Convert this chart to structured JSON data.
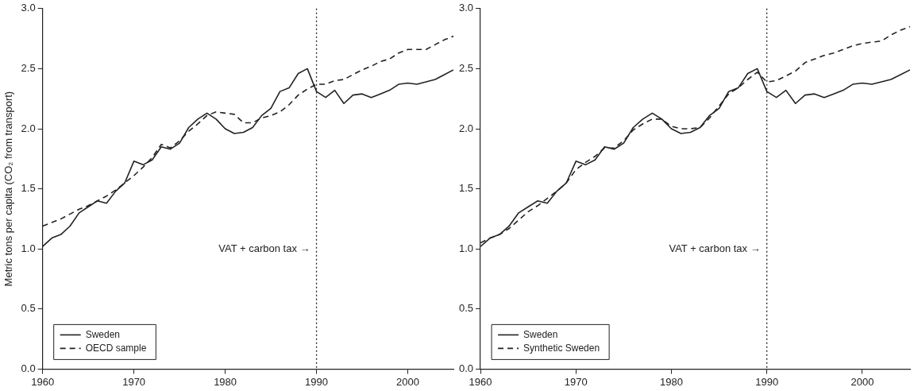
{
  "chart_data": [
    {
      "type": "line",
      "ylabel": "Metric tons per capita (CO₂ from transport)",
      "x": [
        1960,
        1961,
        1962,
        1963,
        1964,
        1965,
        1966,
        1967,
        1968,
        1969,
        1970,
        1971,
        1972,
        1973,
        1974,
        1975,
        1976,
        1977,
        1978,
        1979,
        1980,
        1981,
        1982,
        1983,
        1984,
        1985,
        1986,
        1987,
        1988,
        1989,
        1990,
        1991,
        1992,
        1993,
        1994,
        1995,
        1996,
        1997,
        1998,
        1999,
        2000,
        2001,
        2002,
        2003,
        2004,
        2005
      ],
      "series": [
        {
          "name": "Sweden",
          "color": "#222222",
          "line_style": "solid",
          "values": [
            1.02,
            1.09,
            1.12,
            1.19,
            1.3,
            1.35,
            1.4,
            1.38,
            1.48,
            1.55,
            1.73,
            1.7,
            1.74,
            1.85,
            1.83,
            1.88,
            2.01,
            2.08,
            2.13,
            2.08,
            2.0,
            1.96,
            1.97,
            2.01,
            2.11,
            2.17,
            2.31,
            2.34,
            2.46,
            2.5,
            2.31,
            2.26,
            2.32,
            2.21,
            2.28,
            2.29,
            2.26,
            2.29,
            2.32,
            2.37,
            2.38,
            2.37,
            2.39,
            2.41,
            2.45,
            2.49
          ]
        },
        {
          "name": "OECD sample",
          "color": "#222222",
          "line_style": "dashed",
          "values": [
            1.19,
            1.22,
            1.25,
            1.29,
            1.33,
            1.36,
            1.4,
            1.44,
            1.49,
            1.55,
            1.61,
            1.68,
            1.76,
            1.87,
            1.84,
            1.9,
            1.98,
            2.04,
            2.11,
            2.14,
            2.13,
            2.12,
            2.05,
            2.05,
            2.09,
            2.11,
            2.14,
            2.2,
            2.28,
            2.33,
            2.37,
            2.37,
            2.4,
            2.41,
            2.45,
            2.49,
            2.52,
            2.56,
            2.58,
            2.63,
            2.66,
            2.66,
            2.66,
            2.7,
            2.74,
            2.77
          ]
        }
      ],
      "xlim": [
        1960,
        2005
      ],
      "xticks": [
        1960,
        1970,
        1980,
        1990,
        2000
      ],
      "ylim": [
        0,
        3
      ],
      "yticks": [
        {
          "value": 0,
          "label": "0.0"
        },
        {
          "value": 0.5,
          "label": "0.5"
        },
        {
          "value": 1,
          "label": "1.0"
        },
        {
          "value": 1.5,
          "label": "1.5"
        },
        {
          "value": 2,
          "label": "2.0"
        },
        {
          "value": 2.5,
          "label": "2.5"
        },
        {
          "value": 3,
          "label": "3.0"
        }
      ],
      "ref_lines": [
        {
          "axis": "x",
          "value": 1990,
          "line_style": "dotted",
          "color": "#222222"
        }
      ],
      "annotations": [
        {
          "text": "VAT + carbon tax →",
          "x": 1990,
          "y": 1.0
        }
      ],
      "legend": "bottom left",
      "grid": false,
      "marker": "none"
    },
    {
      "type": "line",
      "x": [
        1960,
        1961,
        1962,
        1963,
        1964,
        1965,
        1966,
        1967,
        1968,
        1969,
        1970,
        1971,
        1972,
        1973,
        1974,
        1975,
        1976,
        1977,
        1978,
        1979,
        1980,
        1981,
        1982,
        1983,
        1984,
        1985,
        1986,
        1987,
        1988,
        1989,
        1990,
        1991,
        1992,
        1993,
        1994,
        1995,
        1996,
        1997,
        1998,
        1999,
        2000,
        2001,
        2002,
        2003,
        2004,
        2005
      ],
      "series": [
        {
          "name": "Sweden",
          "color": "#222222",
          "line_style": "solid",
          "values": [
            1.02,
            1.09,
            1.12,
            1.19,
            1.3,
            1.35,
            1.4,
            1.38,
            1.48,
            1.55,
            1.73,
            1.7,
            1.74,
            1.85,
            1.83,
            1.88,
            2.01,
            2.08,
            2.13,
            2.08,
            2.0,
            1.96,
            1.97,
            2.01,
            2.11,
            2.17,
            2.31,
            2.34,
            2.46,
            2.5,
            2.31,
            2.26,
            2.32,
            2.21,
            2.28,
            2.29,
            2.26,
            2.29,
            2.32,
            2.37,
            2.38,
            2.37,
            2.39,
            2.41,
            2.45,
            2.49
          ]
        },
        {
          "name": "Synthetic Sweden",
          "color": "#222222",
          "line_style": "dashed",
          "values": [
            1.05,
            1.09,
            1.12,
            1.17,
            1.24,
            1.31,
            1.36,
            1.42,
            1.48,
            1.55,
            1.66,
            1.72,
            1.77,
            1.84,
            1.84,
            1.9,
            1.99,
            2.04,
            2.08,
            2.08,
            2.02,
            2.0,
            2.0,
            2.01,
            2.09,
            2.19,
            2.29,
            2.34,
            2.41,
            2.47,
            2.39,
            2.4,
            2.44,
            2.48,
            2.55,
            2.58,
            2.61,
            2.63,
            2.66,
            2.69,
            2.71,
            2.72,
            2.73,
            2.78,
            2.82,
            2.85
          ]
        }
      ],
      "xlim": [
        1960,
        2005
      ],
      "xticks": [
        1960,
        1970,
        1980,
        1990,
        2000
      ],
      "ylim": [
        0,
        3
      ],
      "yticks": [
        {
          "value": 0,
          "label": "0.0"
        },
        {
          "value": 0.5,
          "label": "0.5"
        },
        {
          "value": 1,
          "label": "1.0"
        },
        {
          "value": 1.5,
          "label": "1.5"
        },
        {
          "value": 2,
          "label": "2.0"
        },
        {
          "value": 2.5,
          "label": "2.5"
        },
        {
          "value": 3,
          "label": "3.0"
        }
      ],
      "ref_lines": [
        {
          "axis": "x",
          "value": 1990,
          "line_style": "dotted",
          "color": "#222222"
        }
      ],
      "annotations": [
        {
          "text": "VAT + carbon tax →",
          "x": 1990,
          "y": 1.0
        }
      ],
      "legend": "bottom left",
      "grid": false,
      "marker": "none"
    }
  ]
}
